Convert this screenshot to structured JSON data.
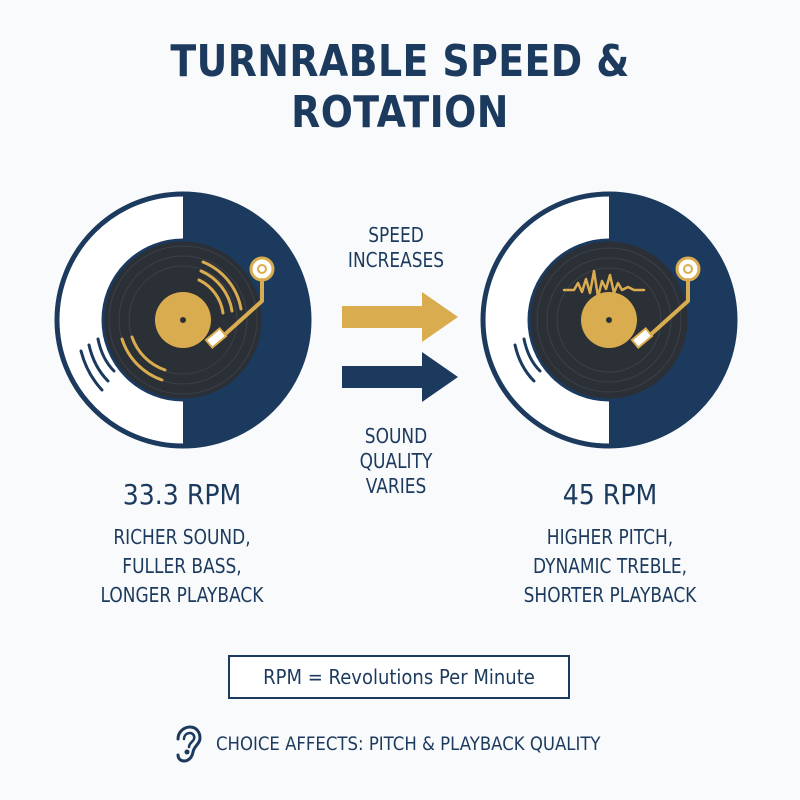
{
  "title": "TURNRABLE SPEED & ROTATION",
  "arrows": {
    "top_label": [
      "SPEED",
      "INCREASES"
    ],
    "bottom_label": [
      "SOUND",
      "QUALITY",
      "VARIES"
    ]
  },
  "left": {
    "rpm": "33.3 RPM",
    "lines": [
      "RICHER SOUND,",
      "FULLER BASS,",
      "LONGER PLAYBACK"
    ]
  },
  "right": {
    "rpm": "45 RPM",
    "lines": [
      "HIGHER PITCH,",
      "DYNAMIC TREBLE,",
      "SHORTER PLAYBACK"
    ]
  },
  "definition": "RPM = Revolutions Per Minute",
  "footer": {
    "icon": "ear-icon",
    "text": "CHOICE AFFECTS: PITCH & PLAYBACK QUALITY"
  },
  "colors": {
    "navy": "#1c3a5e",
    "gold": "#d9ac4f",
    "record": "#2b2f36",
    "background": "#f9fafb"
  }
}
